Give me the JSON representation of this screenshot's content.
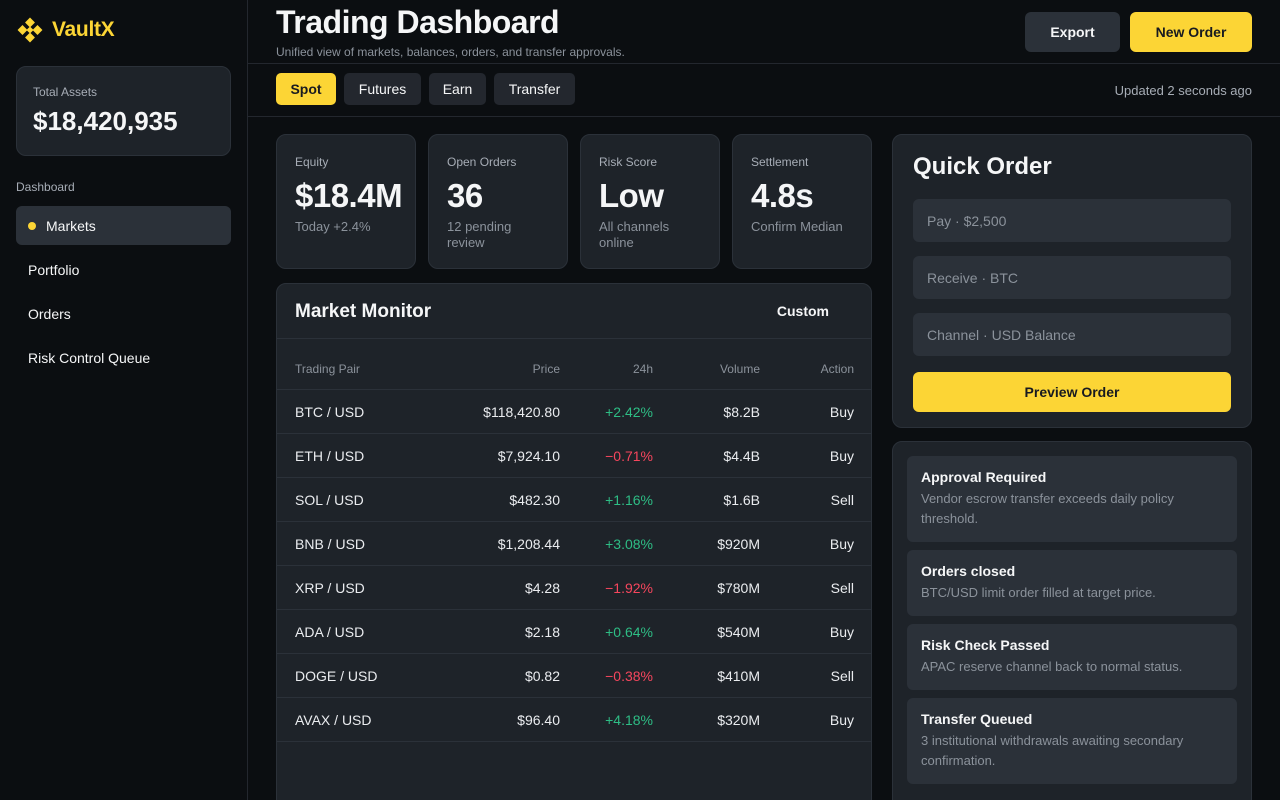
{
  "brand": {
    "name": "VaultX",
    "accent": "#fcd535"
  },
  "sidebar": {
    "assets_label": "Total Assets",
    "assets_value": "$18,420,935",
    "section_label": "Dashboard",
    "items": [
      {
        "label": "Markets",
        "active": true
      },
      {
        "label": "Portfolio"
      },
      {
        "label": "Orders"
      },
      {
        "label": "Risk Control Queue"
      }
    ]
  },
  "header": {
    "title": "Trading Dashboard",
    "subtitle": "Unified view of markets, balances, orders, and transfer approvals.",
    "export_label": "Export",
    "new_order_label": "New Order"
  },
  "tabs": {
    "items": [
      "Spot",
      "Futures",
      "Earn",
      "Transfer"
    ],
    "active": "Spot",
    "updated": "Updated 2 seconds ago"
  },
  "stats": [
    {
      "label": "Equity",
      "value": "$18.4M",
      "note": "Today +2.4%"
    },
    {
      "label": "Open Orders",
      "value": "36",
      "note": "12 pending review"
    },
    {
      "label": "Risk Score",
      "value": "Low",
      "note": "All channels online"
    },
    {
      "label": "Settlement",
      "value": "4.8s",
      "note": "Confirm Median"
    }
  ],
  "market": {
    "title": "Market Monitor",
    "custom_label": "Custom",
    "columns": {
      "pair": "Trading Pair",
      "price": "Price",
      "change": "24h",
      "volume": "Volume",
      "action": "Action"
    },
    "rows": [
      {
        "pair": "BTC / USD",
        "price": "$118,420.80",
        "change": "+2.42%",
        "volume": "$8.2B",
        "action": "Buy"
      },
      {
        "pair": "ETH / USD",
        "price": "$7,924.10",
        "change": "−0.71%",
        "volume": "$4.4B",
        "action": "Buy"
      },
      {
        "pair": "SOL / USD",
        "price": "$482.30",
        "change": "+1.16%",
        "volume": "$1.6B",
        "action": "Sell"
      },
      {
        "pair": "BNB / USD",
        "price": "$1,208.44",
        "change": "+3.08%",
        "volume": "$920M",
        "action": "Buy"
      },
      {
        "pair": "XRP / USD",
        "price": "$4.28",
        "change": "−1.92%",
        "volume": "$780M",
        "action": "Sell"
      },
      {
        "pair": "ADA / USD",
        "price": "$2.18",
        "change": "+0.64%",
        "volume": "$540M",
        "action": "Buy"
      },
      {
        "pair": "DOGE / USD",
        "price": "$0.82",
        "change": "−0.38%",
        "volume": "$410M",
        "action": "Sell"
      },
      {
        "pair": "AVAX / USD",
        "price": "$96.40",
        "change": "+4.18%",
        "volume": "$320M",
        "action": "Buy"
      }
    ]
  },
  "quick_order": {
    "title": "Quick Order",
    "pay_placeholder": "Pay · $2,500",
    "receive_placeholder": "Receive · BTC",
    "channel_placeholder": "Channel · USD Balance",
    "preview_label": "Preview Order"
  },
  "notifications": [
    {
      "title": "Approval Required",
      "body": "Vendor escrow transfer exceeds daily policy threshold."
    },
    {
      "title": "Orders closed",
      "body": "BTC/USD limit order filled at target price."
    },
    {
      "title": "Risk Check Passed",
      "body": "APAC reserve channel back to normal status."
    },
    {
      "title": "Transfer Queued",
      "body": "3 institutional withdrawals awaiting secondary confirmation."
    }
  ]
}
